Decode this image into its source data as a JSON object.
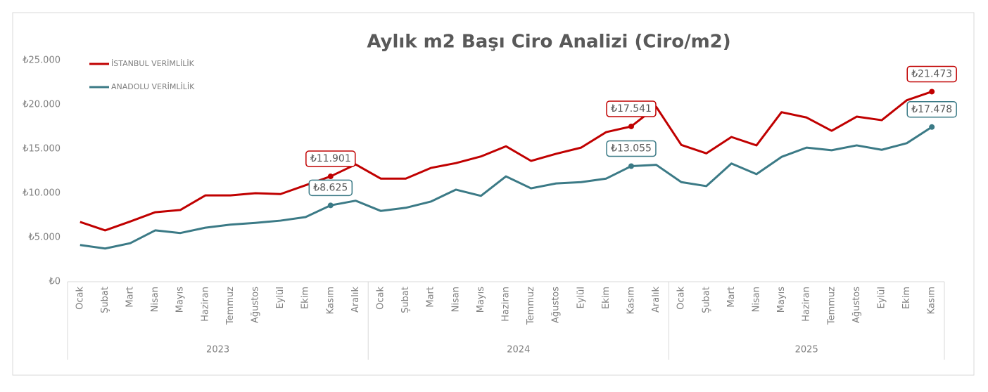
{
  "chart_data": {
    "type": "line",
    "title": "Aylık m2 Başı Ciro Analizi (Ciro/m2)",
    "category_groups": [
      {
        "name": "2023",
        "categories": [
          "Ocak",
          "Şubat",
          "Mart",
          "Nisan",
          "Mayıs",
          "Haziran",
          "Temmuz",
          "Ağustos",
          "Eylül",
          "Ekim",
          "Kasım",
          "Aralık"
        ]
      },
      {
        "name": "2024",
        "categories": [
          "Ocak",
          "Şubat",
          "Mart",
          "Nisan",
          "Mayıs",
          "Haziran",
          "Temmuz",
          "Ağustos",
          "Eylül",
          "Ekim",
          "Kasım",
          "Aralık"
        ]
      },
      {
        "name": "2025",
        "categories": [
          "Ocak",
          "Şubat",
          "Mart",
          "Nisan",
          "Mayıs",
          "Haziran",
          "Temmuz",
          "Ağustos",
          "Eylül",
          "Ekim",
          "Kasım"
        ]
      }
    ],
    "series": [
      {
        "name": "İSTANBUL VERİMLİLİK",
        "color": "#c00000",
        "values": [
          6750,
          5800,
          6800,
          7850,
          8100,
          9750,
          9750,
          10000,
          9900,
          10900,
          11901,
          13250,
          11650,
          11650,
          12850,
          13400,
          14150,
          15300,
          13650,
          14450,
          15150,
          16900,
          17541,
          19750,
          15450,
          14500,
          16350,
          15400,
          19150,
          18550,
          17050,
          18650,
          18250,
          20500,
          21473
        ],
        "value_labels": [
          null,
          null,
          null,
          null,
          null,
          null,
          null,
          null,
          null,
          null,
          "₺11.901",
          null,
          null,
          null,
          null,
          null,
          null,
          null,
          null,
          null,
          null,
          null,
          "₺17.541",
          null,
          null,
          null,
          null,
          null,
          null,
          null,
          null,
          null,
          null,
          null,
          "₺21.473"
        ]
      },
      {
        "name": "ANADOLU VERİMLİLİK",
        "color": "#3b7a86",
        "values": [
          4150,
          3750,
          4350,
          5800,
          5500,
          6100,
          6450,
          6650,
          6900,
          7300,
          8625,
          9150,
          8000,
          8350,
          9050,
          10400,
          9700,
          11900,
          10550,
          11100,
          11250,
          11650,
          13055,
          13200,
          11250,
          10800,
          13350,
          12150,
          14100,
          15150,
          14850,
          15400,
          14900,
          15650,
          17478
        ],
        "value_labels": [
          null,
          null,
          null,
          null,
          null,
          null,
          null,
          null,
          null,
          null,
          "₺8.625",
          null,
          null,
          null,
          null,
          null,
          null,
          null,
          null,
          null,
          null,
          null,
          "₺13.055",
          null,
          null,
          null,
          null,
          null,
          null,
          null,
          null,
          null,
          null,
          null,
          "₺17.478"
        ]
      }
    ],
    "ylim": [
      0,
      25000
    ],
    "yticks": [
      {
        "value": 0,
        "label": "₺0"
      },
      {
        "value": 5000,
        "label": "₺5.000"
      },
      {
        "value": 10000,
        "label": "₺10.000"
      },
      {
        "value": 15000,
        "label": "₺15.000"
      },
      {
        "value": 20000,
        "label": "₺20.000"
      },
      {
        "value": 25000,
        "label": "₺25.000"
      }
    ],
    "legend": "top-left"
  }
}
